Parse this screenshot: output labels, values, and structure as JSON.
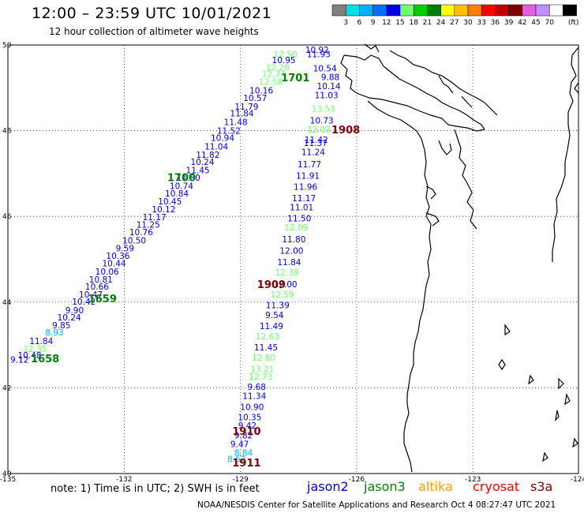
{
  "header": {
    "title": "12:00 – 23:59 UTC 10/01/2021",
    "subtitle": "12 hour collection of altimeter wave heights"
  },
  "legend": {
    "unit": "(ft)",
    "bins": [
      {
        "color": "#808080",
        "label": ""
      },
      {
        "color": "#00e0e0",
        "label": "3"
      },
      {
        "color": "#00b0ff",
        "label": "6"
      },
      {
        "color": "#0070ff",
        "label": "9"
      },
      {
        "color": "#0000e0",
        "label": "12"
      },
      {
        "color": "#70ff70",
        "label": "15"
      },
      {
        "color": "#00d000",
        "label": "18"
      },
      {
        "color": "#008000",
        "label": "21"
      },
      {
        "color": "#ffff00",
        "label": "24"
      },
      {
        "color": "#ffc000",
        "label": "27"
      },
      {
        "color": "#ff8000",
        "label": "30"
      },
      {
        "color": "#ff0000",
        "label": "33"
      },
      {
        "color": "#c00000",
        "label": "36"
      },
      {
        "color": "#800000",
        "label": "39"
      },
      {
        "color": "#e060e0",
        "label": "42"
      },
      {
        "color": "#c090ff",
        "label": "45"
      },
      {
        "color": "#ffffff",
        "label": "70"
      },
      {
        "color": "#000000",
        "label": ""
      }
    ]
  },
  "map": {
    "lon_range": [
      -135,
      -124
    ],
    "lat_range": [
      40,
      50
    ],
    "lon_ticks": [
      {
        "value": -135,
        "label": "-135"
      },
      {
        "value": -132,
        "label": "-132"
      },
      {
        "value": -129,
        "label": "-129"
      },
      {
        "value": -126,
        "label": "-126"
      },
      {
        "value": -123,
        "label": "-123"
      },
      {
        "value": -124,
        "label": "-124"
      }
    ],
    "lat_ticks": [
      {
        "value": 50,
        "label": "50"
      },
      {
        "value": 48,
        "label": "48"
      },
      {
        "value": 46,
        "label": "46"
      },
      {
        "value": 44,
        "label": "44"
      },
      {
        "value": 42,
        "label": "42"
      },
      {
        "value": 40,
        "label": "40"
      }
    ],
    "grid": true
  },
  "chart_data": {
    "type": "scatter",
    "x_axis": "longitude",
    "y_axis": "latitude",
    "tracks": [
      {
        "pass_label": "1908",
        "label_color": "#800000",
        "label_lon": -126.28,
        "label_lat": 47.94,
        "points": [
          {
            "lon": -127.02,
            "lat": 49.82,
            "value": "10.92",
            "color": "#0000e0"
          },
          {
            "lon": -126.98,
            "lat": 49.71,
            "value": "11.93",
            "color": "#0000e0"
          },
          {
            "lon": -126.82,
            "lat": 49.38,
            "value": "10.54",
            "color": "#0000e0"
          },
          {
            "lon": -126.68,
            "lat": 49.18,
            "value": "9.88",
            "color": "#0000e0"
          },
          {
            "lon": -126.72,
            "lat": 48.97,
            "value": "10.14",
            "color": "#0000e0"
          },
          {
            "lon": -126.78,
            "lat": 48.76,
            "value": "11.03",
            "color": "#0000e0"
          },
          {
            "lon": -126.86,
            "lat": 48.44,
            "value": "13.53",
            "color": "#70ff70"
          },
          {
            "lon": -126.9,
            "lat": 48.17,
            "value": "10.73",
            "color": "#0000e0"
          },
          {
            "lon": -126.98,
            "lat": 47.96,
            "value": "12.03",
            "color": "#70ff70"
          },
          {
            "lon": -127.04,
            "lat": 47.72,
            "value": "11.42",
            "color": "#0000e0"
          },
          {
            "lon": -127.06,
            "lat": 47.64,
            "value": "11.37",
            "color": "#0000e0"
          },
          {
            "lon": -127.12,
            "lat": 47.43,
            "value": "11.24",
            "color": "#0000e0"
          },
          {
            "lon": -127.22,
            "lat": 47.15,
            "value": "11.77",
            "color": "#0000e0"
          },
          {
            "lon": -127.26,
            "lat": 46.88,
            "value": "11.91",
            "color": "#0000e0"
          },
          {
            "lon": -127.32,
            "lat": 46.62,
            "value": "11.96",
            "color": "#0000e0"
          },
          {
            "lon": -127.36,
            "lat": 46.35,
            "value": "11.17",
            "color": "#0000e0"
          },
          {
            "lon": -127.42,
            "lat": 46.14,
            "value": "11.01",
            "color": "#0000e0"
          },
          {
            "lon": -127.48,
            "lat": 45.88,
            "value": "11.50",
            "color": "#0000e0"
          }
        ]
      },
      {
        "pass_label": "1909",
        "label_color": "#800000",
        "label_lon": -128.2,
        "label_lat": 44.33,
        "points": [
          {
            "lon": -127.56,
            "lat": 45.67,
            "value": "12.09",
            "color": "#70ff70"
          },
          {
            "lon": -127.62,
            "lat": 45.4,
            "value": "11.80",
            "color": "#0000e0"
          },
          {
            "lon": -127.68,
            "lat": 45.13,
            "value": "12.00",
            "color": "#0000e0"
          },
          {
            "lon": -127.74,
            "lat": 44.86,
            "value": "11.84",
            "color": "#0000e0"
          },
          {
            "lon": -127.8,
            "lat": 44.62,
            "value": "12.39",
            "color": "#70ff70"
          },
          {
            "lon": -127.84,
            "lat": 44.35,
            "value": "12.00",
            "color": "#0000e0"
          },
          {
            "lon": -127.92,
            "lat": 44.11,
            "value": "12.59",
            "color": "#70ff70"
          },
          {
            "lon": -128.04,
            "lat": 43.86,
            "value": "11.39",
            "color": "#0000e0"
          },
          {
            "lon": -128.12,
            "lat": 43.63,
            "value": "9.54",
            "color": "#0000e0"
          },
          {
            "lon": -128.2,
            "lat": 43.37,
            "value": "11.49",
            "color": "#0000e0"
          },
          {
            "lon": -128.3,
            "lat": 43.13,
            "value": "12.63",
            "color": "#70ff70"
          },
          {
            "lon": -128.34,
            "lat": 42.87,
            "value": "11.45",
            "color": "#0000e0"
          },
          {
            "lon": -128.4,
            "lat": 42.63,
            "value": "12.80",
            "color": "#70ff70"
          },
          {
            "lon": -128.44,
            "lat": 42.37,
            "value": "13.21",
            "color": "#70ff70"
          },
          {
            "lon": -128.48,
            "lat": 42.19,
            "value": "12.73",
            "color": "#70ff70"
          },
          {
            "lon": -128.58,
            "lat": 41.95,
            "value": "9.68",
            "color": "#0000e0"
          },
          {
            "lon": -128.64,
            "lat": 41.74,
            "value": "11.34",
            "color": "#0000e0"
          }
        ]
      },
      {
        "pass_label": "1910",
        "label_color": "#800000",
        "label_lon": -128.84,
        "label_lat": 40.9,
        "points": [
          {
            "lon": -128.7,
            "lat": 41.48,
            "value": "10.90",
            "color": "#0000e0"
          },
          {
            "lon": -128.76,
            "lat": 41.24,
            "value": "10.35",
            "color": "#0000e0"
          },
          {
            "lon": -128.82,
            "lat": 41.05,
            "value": "9.42",
            "color": "#0000e0"
          },
          {
            "lon": -128.92,
            "lat": 40.82,
            "value": "9.82",
            "color": "#0000e0"
          },
          {
            "lon": -129.02,
            "lat": 40.62,
            "value": "9.47",
            "color": "#0000e0"
          }
        ]
      },
      {
        "pass_label": "1911",
        "label_color": "#800000",
        "label_lon": -128.84,
        "label_lat": 40.17,
        "points": [
          {
            "lon": -128.92,
            "lat": 40.41,
            "value": "8.84",
            "color": "#00b0ff"
          },
          {
            "lon": -129.1,
            "lat": 40.27,
            "value": "8.62",
            "color": "#00b0ff"
          }
        ]
      },
      {
        "pass_label": "1701",
        "label_color": "#008000",
        "label_lon": -127.58,
        "label_lat": 49.15,
        "points": [
          {
            "lon": -127.84,
            "lat": 49.71,
            "value": "12.50",
            "color": "#70ff70"
          },
          {
            "lon": -127.88,
            "lat": 49.58,
            "value": "10.95",
            "color": "#0000e0"
          },
          {
            "lon": -128.04,
            "lat": 49.4,
            "value": "12.28",
            "color": "#70ff70"
          },
          {
            "lon": -128.14,
            "lat": 49.25,
            "value": "12.74",
            "color": "#70ff70"
          },
          {
            "lon": -128.22,
            "lat": 49.07,
            "value": "12.58",
            "color": "#70ff70"
          }
        ]
      },
      {
        "pass_label": "1700",
        "label_color": "#008000",
        "label_lon": -130.52,
        "label_lat": 46.82,
        "points": [
          {
            "lon": -128.46,
            "lat": 48.87,
            "value": "10.16",
            "color": "#0000e0"
          },
          {
            "lon": -128.62,
            "lat": 48.69,
            "value": "10.57",
            "color": "#0000e0"
          },
          {
            "lon": -128.84,
            "lat": 48.49,
            "value": "11.79",
            "color": "#0000e0"
          },
          {
            "lon": -128.96,
            "lat": 48.33,
            "value": "11.84",
            "color": "#0000e0"
          },
          {
            "lon": -129.12,
            "lat": 48.13,
            "value": "11.48",
            "color": "#0000e0"
          },
          {
            "lon": -129.3,
            "lat": 47.93,
            "value": "11.52",
            "color": "#0000e0"
          },
          {
            "lon": -129.46,
            "lat": 47.76,
            "value": "10.94",
            "color": "#0000e0"
          },
          {
            "lon": -129.62,
            "lat": 47.56,
            "value": "11.04",
            "color": "#0000e0"
          },
          {
            "lon": -129.84,
            "lat": 47.37,
            "value": "11.82",
            "color": "#0000e0"
          },
          {
            "lon": -129.98,
            "lat": 47.2,
            "value": "10.24",
            "color": "#0000e0"
          },
          {
            "lon": -130.1,
            "lat": 47.01,
            "value": "11.45",
            "color": "#0000e0"
          },
          {
            "lon": -130.34,
            "lat": 46.83,
            "value": "11.80",
            "color": "#0000e0"
          },
          {
            "lon": -130.52,
            "lat": 46.64,
            "value": "10.74",
            "color": "#0000e0"
          },
          {
            "lon": -130.64,
            "lat": 46.46,
            "value": "10.84",
            "color": "#0000e0"
          },
          {
            "lon": -130.82,
            "lat": 46.28,
            "value": "10.45",
            "color": "#0000e0"
          },
          {
            "lon": -130.98,
            "lat": 46.1,
            "value": "10.12",
            "color": "#0000e0"
          }
        ]
      },
      {
        "pass_label": "1659",
        "label_color": "#008000",
        "label_lon": -132.56,
        "label_lat": 44.0,
        "points": [
          {
            "lon": -131.22,
            "lat": 45.91,
            "value": "11.17",
            "color": "#0000e0"
          },
          {
            "lon": -131.38,
            "lat": 45.74,
            "value": "11.25",
            "color": "#0000e0"
          },
          {
            "lon": -131.56,
            "lat": 45.56,
            "value": "10.76",
            "color": "#0000e0"
          },
          {
            "lon": -131.74,
            "lat": 45.37,
            "value": "10.50",
            "color": "#0000e0"
          },
          {
            "lon": -131.98,
            "lat": 45.18,
            "value": "9.59",
            "color": "#0000e0"
          },
          {
            "lon": -132.16,
            "lat": 45.01,
            "value": "10.36",
            "color": "#0000e0"
          },
          {
            "lon": -132.26,
            "lat": 44.83,
            "value": "10.44",
            "color": "#0000e0"
          },
          {
            "lon": -132.44,
            "lat": 44.64,
            "value": "10.06",
            "color": "#0000e0"
          },
          {
            "lon": -132.6,
            "lat": 44.46,
            "value": "10.81",
            "color": "#0000e0"
          },
          {
            "lon": -132.7,
            "lat": 44.29,
            "value": "10.66",
            "color": "#0000e0"
          },
          {
            "lon": -132.86,
            "lat": 44.11,
            "value": "10.47",
            "color": "#0000e0"
          },
          {
            "lon": -133.04,
            "lat": 43.94,
            "value": "10.42",
            "color": "#0000e0"
          },
          {
            "lon": -133.28,
            "lat": 43.74,
            "value": "9.90",
            "color": "#0000e0"
          },
          {
            "lon": -133.42,
            "lat": 43.57,
            "value": "10.24",
            "color": "#0000e0"
          },
          {
            "lon": -133.62,
            "lat": 43.39,
            "value": "9.85",
            "color": "#0000e0"
          }
        ]
      },
      {
        "pass_label": "1658",
        "label_color": "#008000",
        "label_lon": -134.04,
        "label_lat": 42.6,
        "points": [
          {
            "lon": -133.8,
            "lat": 43.22,
            "value": "8.93",
            "color": "#00b0ff"
          },
          {
            "lon": -134.14,
            "lat": 43.02,
            "value": "11.84",
            "color": "#0000e0"
          },
          {
            "lon": -134.3,
            "lat": 42.84,
            "value": "12.35",
            "color": "#70ff70"
          },
          {
            "lon": -134.44,
            "lat": 42.69,
            "value": "10.48",
            "color": "#0000e0"
          },
          {
            "lon": -134.7,
            "lat": 42.59,
            "value": "9.12",
            "color": "#0000e0"
          }
        ]
      }
    ]
  },
  "footer": {
    "note": "note:  1) Time is in UTC;  2) SWH is in feet",
    "satellites": [
      {
        "name": "jason2",
        "color": "#0000e0"
      },
      {
        "name": "jason3",
        "color": "#008000"
      },
      {
        "name": "altika",
        "color": "#ffa000"
      },
      {
        "name": "cryosat",
        "color": "#ff0000"
      },
      {
        "name": "s3a",
        "color": "#800000"
      }
    ],
    "credit": "NOAA/NESDIS Center for Satellite Applications and Research    Oct  4 08:27:47 UTC 2021"
  }
}
